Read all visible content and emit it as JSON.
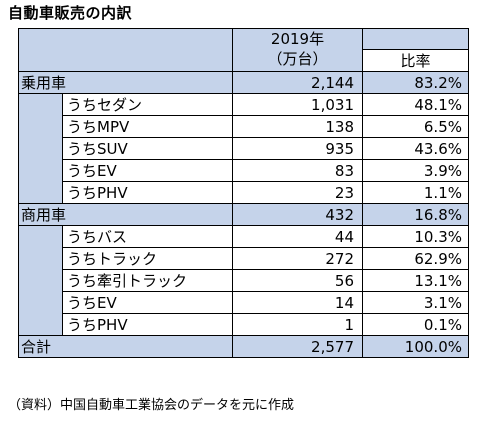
{
  "title": "自動車販売の内訳",
  "header": {
    "year": "2019年",
    "unit": "（万台）",
    "ratio": "比率"
  },
  "rows": [
    {
      "label": "乗用車",
      "value": "2,144",
      "pct": "83.2%"
    },
    {
      "label": "うちセダン",
      "value": "1,031",
      "pct": "48.1%"
    },
    {
      "label": "うちMPV",
      "value": "138",
      "pct": "6.5%"
    },
    {
      "label": "うちSUV",
      "value": "935",
      "pct": "43.6%"
    },
    {
      "label": "うちEV",
      "value": "83",
      "pct": "3.9%"
    },
    {
      "label": "うちPHV",
      "value": "23",
      "pct": "1.1%"
    },
    {
      "label": "商用車",
      "value": "432",
      "pct": "16.8%"
    },
    {
      "label": "うちバス",
      "value": "44",
      "pct": "10.3%"
    },
    {
      "label": "うちトラック",
      "value": "272",
      "pct": "62.9%"
    },
    {
      "label": "うち牽引トラック",
      "value": "56",
      "pct": "13.1%"
    },
    {
      "label": "うちEV",
      "value": "14",
      "pct": "3.1%"
    },
    {
      "label": "うちPHV",
      "value": "1",
      "pct": "0.1%"
    },
    {
      "label": "合計",
      "value": "2,577",
      "pct": "100.0%"
    }
  ],
  "source": "（資料）中国自動車工業協会のデータを元に作成",
  "colors": {
    "header_fill": "#c5d3ea",
    "border": "#000000"
  }
}
